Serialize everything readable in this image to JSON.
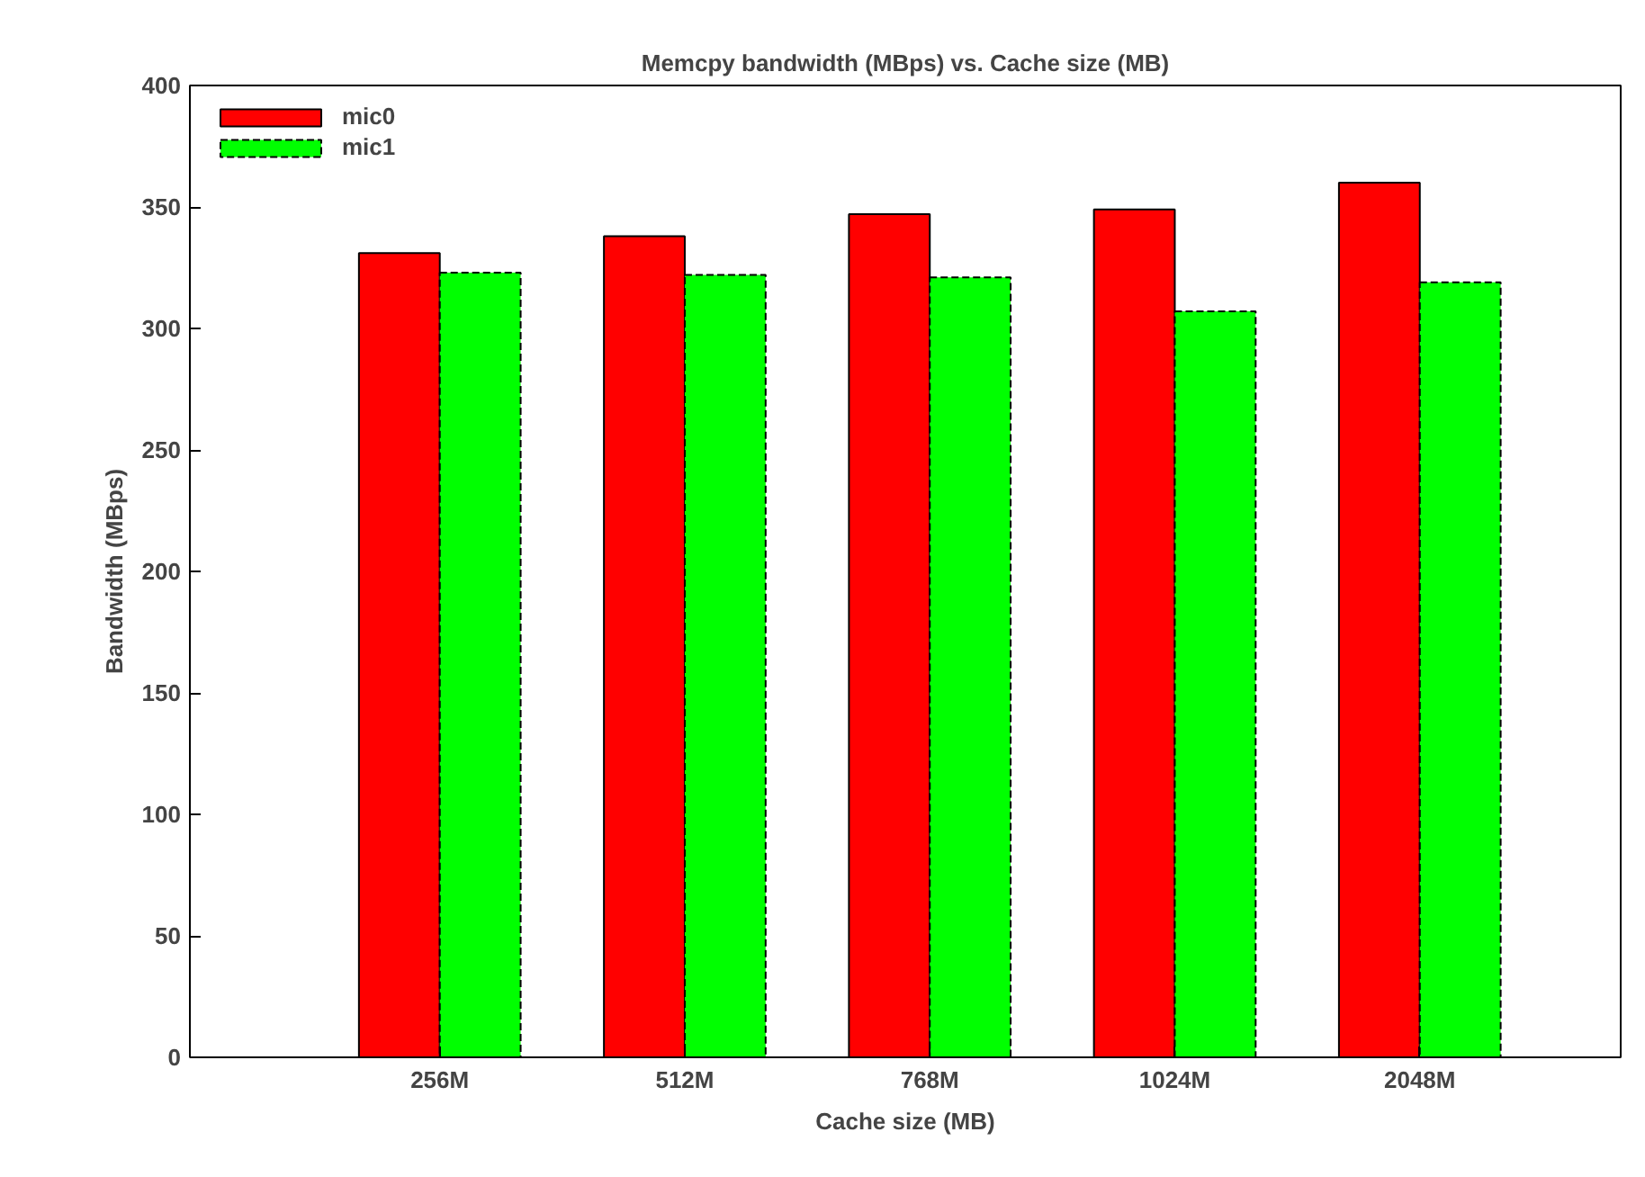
{
  "chart_data": {
    "type": "bar",
    "title": "Memcpy bandwidth (MBps) vs. Cache size (MB)",
    "xlabel": "Cache size (MB)",
    "ylabel": "Bandwidth (MBps)",
    "categories": [
      "256M",
      "512M",
      "768M",
      "1024M",
      "2048M"
    ],
    "series": [
      {
        "name": "mic0",
        "color": "#ff0000",
        "values": [
          331,
          338,
          347,
          349,
          360
        ]
      },
      {
        "name": "mic1",
        "color": "#00ff00",
        "values": [
          323,
          322,
          321,
          307,
          319
        ]
      }
    ],
    "ylim": [
      0,
      400
    ],
    "yticks": [
      0,
      50,
      100,
      150,
      200,
      250,
      300,
      350,
      400
    ],
    "legend": "top left"
  }
}
